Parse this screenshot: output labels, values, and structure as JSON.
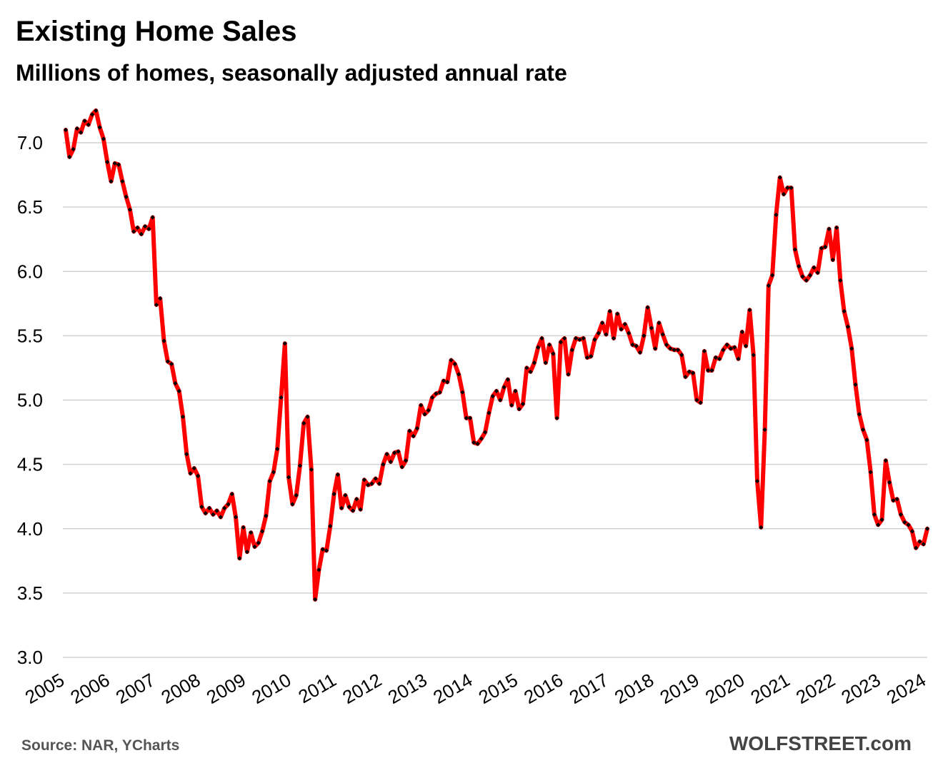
{
  "chart_data": {
    "type": "line",
    "title": "Existing Home Sales",
    "subtitle": "Millions of homes, seasonally adjusted annual rate",
    "xlabel": "",
    "ylabel": "",
    "ylim": [
      3.0,
      7.2
    ],
    "yticks": [
      "3.0",
      "3.5",
      "4.0",
      "4.5",
      "5.0",
      "5.5",
      "6.0",
      "6.5",
      "7.0"
    ],
    "xticks": [
      "2005",
      "2006",
      "2007",
      "2008",
      "2009",
      "2010",
      "2011",
      "2012",
      "2013",
      "2014",
      "2015",
      "2016",
      "2017",
      "2018",
      "2019",
      "2020",
      "2021",
      "2022",
      "2023",
      "2024"
    ],
    "x_start": "2005-01",
    "x_end": "2024-01",
    "grid": true,
    "series": [
      {
        "color": "#ff0000",
        "marker_color": "#000000",
        "values": [
          7.1,
          6.89,
          6.95,
          7.11,
          7.08,
          7.17,
          7.14,
          7.22,
          7.25,
          7.12,
          7.03,
          6.85,
          6.7,
          6.84,
          6.83,
          6.7,
          6.58,
          6.48,
          6.31,
          6.34,
          6.29,
          6.35,
          6.33,
          6.42,
          5.74,
          5.79,
          5.46,
          5.3,
          5.28,
          5.13,
          5.07,
          4.87,
          4.58,
          4.43,
          4.47,
          4.41,
          4.17,
          4.12,
          4.16,
          4.11,
          4.14,
          4.09,
          4.16,
          4.19,
          4.27,
          4.09,
          3.77,
          4.01,
          3.82,
          3.97,
          3.86,
          3.89,
          3.98,
          4.1,
          4.37,
          4.44,
          4.62,
          5.02,
          5.44,
          4.4,
          4.19,
          4.26,
          4.49,
          4.82,
          4.87,
          4.46,
          3.45,
          3.68,
          3.84,
          3.83,
          4.02,
          4.27,
          4.42,
          4.16,
          4.26,
          4.17,
          4.14,
          4.23,
          4.15,
          4.38,
          4.34,
          4.35,
          4.39,
          4.35,
          4.5,
          4.58,
          4.52,
          4.59,
          4.6,
          4.48,
          4.53,
          4.76,
          4.72,
          4.78,
          4.96,
          4.89,
          4.92,
          5.02,
          5.05,
          5.06,
          5.15,
          5.14,
          5.31,
          5.28,
          5.2,
          5.06,
          4.86,
          4.86,
          4.67,
          4.66,
          4.7,
          4.75,
          4.9,
          5.03,
          5.07,
          5.0,
          5.1,
          5.16,
          4.96,
          5.07,
          4.93,
          4.97,
          5.25,
          5.22,
          5.29,
          5.41,
          5.48,
          5.29,
          5.43,
          5.36,
          4.86,
          5.45,
          5.48,
          5.2,
          5.39,
          5.48,
          5.47,
          5.48,
          5.33,
          5.34,
          5.47,
          5.52,
          5.6,
          5.51,
          5.69,
          5.48,
          5.67,
          5.55,
          5.59,
          5.52,
          5.43,
          5.42,
          5.37,
          5.5,
          5.72,
          5.56,
          5.4,
          5.6,
          5.51,
          5.43,
          5.4,
          5.39,
          5.39,
          5.35,
          5.18,
          5.22,
          5.21,
          5.0,
          4.98,
          5.38,
          5.23,
          5.23,
          5.33,
          5.32,
          5.39,
          5.43,
          5.4,
          5.41,
          5.32,
          5.53,
          5.42,
          5.7,
          5.35,
          4.37,
          4.01,
          4.77,
          5.89,
          5.97,
          6.44,
          6.73,
          6.6,
          6.65,
          6.65,
          6.17,
          6.04,
          5.96,
          5.93,
          5.97,
          6.03,
          5.99,
          6.18,
          6.19,
          6.33,
          6.09,
          6.34,
          5.93,
          5.69,
          5.57,
          5.4,
          5.12,
          4.89,
          4.77,
          4.69,
          4.44,
          4.11,
          4.03,
          4.07,
          4.53,
          4.36,
          4.22,
          4.23,
          4.11,
          4.05,
          4.03,
          3.98,
          3.85,
          3.9,
          3.88,
          4.0
        ]
      }
    ]
  },
  "footer": {
    "source": "Source: NAR, YCharts",
    "brand": "WOLFSTREET.com"
  }
}
